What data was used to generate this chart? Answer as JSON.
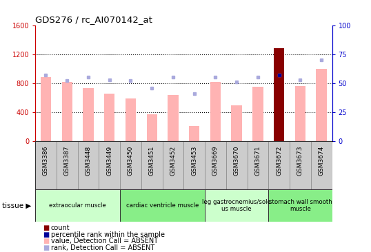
{
  "title": "GDS276 / rc_AI070142_at",
  "samples": [
    "GSM3386",
    "GSM3387",
    "GSM3448",
    "GSM3449",
    "GSM3450",
    "GSM3451",
    "GSM3452",
    "GSM3453",
    "GSM3669",
    "GSM3670",
    "GSM3671",
    "GSM3672",
    "GSM3673",
    "GSM3674"
  ],
  "values_absent": [
    880,
    820,
    730,
    660,
    590,
    370,
    640,
    205,
    820,
    490,
    750,
    1280,
    760,
    1000
  ],
  "ranks_absent": [
    57,
    52,
    55,
    53,
    52,
    46,
    55,
    41,
    55,
    51,
    55,
    57,
    53,
    70
  ],
  "count_bar_idx": 11,
  "count_bar_val": 1280,
  "percentile_rank_idx": 11,
  "percentile_rank_val": 57,
  "ylim_left": [
    0,
    1600
  ],
  "ylim_right": [
    0,
    100
  ],
  "yticks_left": [
    0,
    400,
    800,
    1200,
    1600
  ],
  "yticks_right": [
    0,
    25,
    50,
    75,
    100
  ],
  "left_axis_color": "#cc0000",
  "right_axis_color": "#0000cc",
  "bar_absent_color": "#ffb3b3",
  "bar_count_color": "#880000",
  "rank_absent_color": "#aaaadd",
  "percentile_color": "#000099",
  "tissue_groups": [
    {
      "label": "extraocular muscle",
      "start": 0,
      "end": 4,
      "color": "#ccffcc"
    },
    {
      "label": "cardiac ventricle muscle",
      "start": 4,
      "end": 8,
      "color": "#88ee88"
    },
    {
      "label": "leg gastrocnemius/sole\nus muscle",
      "start": 8,
      "end": 11,
      "color": "#ccffcc"
    },
    {
      "label": "stomach wall smooth\nmuscle",
      "start": 11,
      "end": 14,
      "color": "#88ee88"
    }
  ],
  "legend_items": [
    {
      "label": "count",
      "color": "#880000"
    },
    {
      "label": "percentile rank within the sample",
      "color": "#000099"
    },
    {
      "label": "value, Detection Call = ABSENT",
      "color": "#ffb3b3"
    },
    {
      "label": "rank, Detection Call = ABSENT",
      "color": "#aaaadd"
    }
  ],
  "grid_dotted_at": [
    400,
    800,
    1200
  ],
  "bar_width": 0.5,
  "tick_label_color": "#333333",
  "sample_box_color": "#cccccc",
  "sample_box_edge": "#888888"
}
